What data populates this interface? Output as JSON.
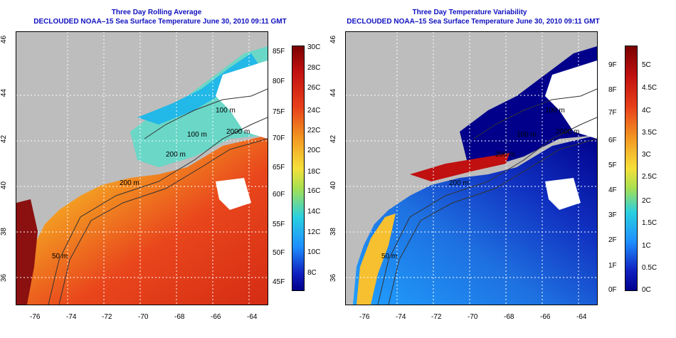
{
  "left_panel": {
    "title_line1": "Three Day Rolling Average",
    "title_line2": "DECLOUDED NOAA–15 Sea Surface Temperature June 30, 2010 09:11 GMT",
    "x_ticks": [
      "-76",
      "-74",
      "-72",
      "-70",
      "-68",
      "-66",
      "-64"
    ],
    "y_ticks": [
      "36",
      "38",
      "40",
      "42",
      "44",
      "46"
    ],
    "contours": [
      "100 m",
      "2000 m",
      "100 m",
      "200 m",
      "200 m",
      "50 m"
    ],
    "colorbar_F": [
      "85F",
      "80F",
      "75F",
      "70F",
      "65F",
      "60F",
      "55F",
      "50F",
      "45F"
    ],
    "colorbar_C": [
      "30C",
      "28C",
      "26C",
      "24C",
      "22C",
      "20C",
      "18C",
      "16C",
      "14C",
      "12C",
      "10C",
      "8C"
    ]
  },
  "right_panel": {
    "title_line1": "Three Day Temperature Variability",
    "title_line2": "DECLOUDED NOAA–15 Sea Surface Temperature June 30, 2010 09:11 GMT",
    "x_ticks": [
      "-76",
      "-74",
      "-72",
      "-70",
      "-68",
      "-66",
      "-64"
    ],
    "y_ticks": [
      "36",
      "38",
      "40",
      "42",
      "44",
      "46"
    ],
    "contours": [
      "100 m",
      "2000 m",
      "100 m",
      "200 m",
      "200 m",
      "50 m"
    ],
    "colorbar_F": [
      "9F",
      "8F",
      "7F",
      "6F",
      "5F",
      "4F",
      "3F",
      "2F",
      "1F",
      "0F"
    ],
    "colorbar_C": [
      "5C",
      "4.5C",
      "4C",
      "3.5C",
      "3C",
      "2.5C",
      "2C",
      "1.5C",
      "1C",
      "0.5C",
      "0C"
    ]
  },
  "colors": {
    "land": "#bdbdbd",
    "title": "#1010c0",
    "sst_warm": "#e8401a",
    "sst_cool": "#2ad0e0",
    "var_low": "#00008b",
    "var_mid": "#1e90ff",
    "var_high": "#b00000"
  }
}
